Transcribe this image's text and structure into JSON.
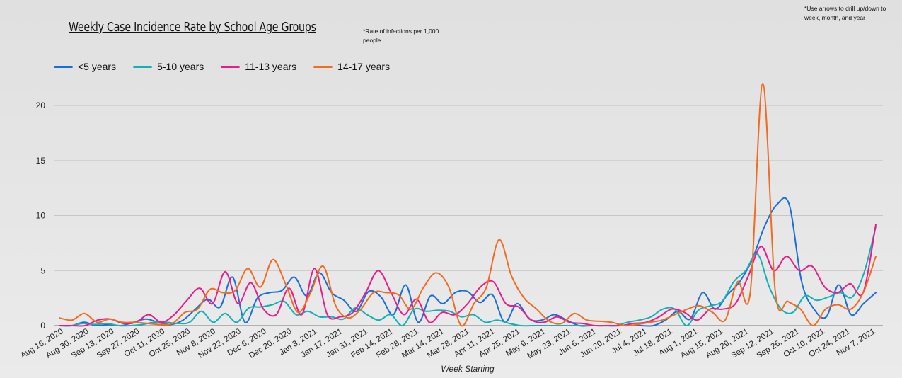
{
  "header": {
    "title": "Weekly Case Incidence Rate by School Age Groups",
    "rate_note": "*Rate of infections per 1,000 people",
    "drill_note": "*Use arrows to drill up/down to week, month, and year"
  },
  "chart_data": {
    "type": "line",
    "title": "Weekly Case Incidence Rate by School Age Groups",
    "xlabel": "Week Starting",
    "ylabel": "",
    "ylim": [
      0,
      22
    ],
    "yticks": [
      0,
      5,
      10,
      15,
      20
    ],
    "grid": true,
    "legend_position": "top-left",
    "x_tick_labels": [
      "Aug 16, 2020",
      "Aug 30, 2020",
      "Sep 13, 2020",
      "Sep 27, 2020",
      "Oct 11, 2020",
      "Oct 25, 2020",
      "Nov 8, 2020",
      "Nov 22, 2020",
      "Dec 6, 2020",
      "Dec 20, 2020",
      "Jan 3, 2021",
      "Jan 17, 2021",
      "Jan 31, 2021",
      "Feb 14, 2021",
      "Feb 28, 2021",
      "Mar 14, 2021",
      "Mar 28, 2021",
      "Apr 11, 2021",
      "Apr 25, 2021",
      "May 9, 2021",
      "May 23, 2021",
      "Jun 6, 2021",
      "Jun 20, 2021",
      "Jul 4, 2021",
      "Jul 18, 2021",
      "Aug 1, 2021",
      "Aug 15, 2021",
      "Aug 29, 2021",
      "Sep 12, 2021",
      "Sep 26, 2021",
      "Oct 10, 2021",
      "Oct 24, 2021",
      "Nov 7, 2021"
    ],
    "series": [
      {
        "name": "<5 years",
        "color": "#1a6fd6",
        "values": [
          0,
          0,
          0.3,
          0,
          0.1,
          0,
          0.3,
          0.6,
          0.3,
          0.1,
          0.5,
          1.5,
          2.4,
          1.7,
          4.4,
          0.3,
          2.5,
          3.0,
          3.2,
          4.4,
          2.7,
          4.8,
          3.0,
          2.3,
          1.3,
          3.1,
          2.6,
          1.0,
          3.7,
          0.3,
          2.7,
          2.0,
          3.0,
          3.1,
          2.1,
          2.8,
          0.3,
          2.0,
          0.6,
          0.5,
          1.0,
          0.5,
          0,
          0,
          0,
          0,
          0,
          0,
          0,
          0.5,
          1.3,
          0.6,
          3.0,
          1.5,
          2.8,
          4.0,
          6.0,
          9.0,
          11.0,
          11.0,
          4.0,
          1.5,
          0.8,
          3.7,
          1.0,
          2.0,
          3.0
        ]
      },
      {
        "name": "5-10 years",
        "color": "#12b0b8",
        "values": [
          0,
          0,
          0.2,
          0.1,
          0.2,
          0,
          0,
          0.1,
          0.3,
          0.3,
          0.2,
          0.3,
          1.3,
          0.3,
          1.1,
          0.3,
          1.6,
          1.7,
          1.9,
          2.2,
          1.0,
          1.3,
          0.8,
          0.8,
          0.6,
          1.6,
          1.0,
          0.5,
          1.0,
          0,
          1.5,
          1.3,
          1.4,
          1.3,
          0.8,
          1.0,
          0.3,
          0.5,
          0.2,
          0,
          0,
          0,
          0,
          0,
          0,
          0,
          0,
          0,
          0.3,
          0.5,
          0.8,
          1.5,
          1.5,
          0,
          1.4,
          1.8,
          2.2,
          4.0,
          5.0,
          6.5,
          3.5,
          1.5,
          1.2,
          2.7,
          2.3,
          2.6,
          3.0,
          2.6,
          4.8,
          9.0
        ]
      },
      {
        "name": "11-13 years",
        "color": "#ea1c8c",
        "values": [
          0,
          0,
          0,
          0.5,
          0.6,
          0.2,
          0.3,
          1.0,
          0.3,
          1.0,
          2.3,
          3.4,
          2.0,
          4.9,
          2.0,
          3.9,
          1.5,
          1.0,
          3.4,
          1.0,
          5.2,
          1.0,
          0.8,
          1.2,
          3.0,
          5.0,
          3.0,
          1.0,
          2.4,
          0.3,
          1.2,
          1.0,
          2.0,
          3.5,
          4.0,
          2.0,
          1.7,
          0.5,
          0.3,
          0.8,
          0.3,
          0.2,
          0,
          0,
          0,
          0.2,
          0.3,
          0.8,
          1.5,
          1.2,
          0.5,
          1.5,
          1.5,
          2.0,
          4.5,
          7.2,
          5.0,
          6.3,
          5.0,
          5.4,
          3.5,
          3.0,
          3.8,
          3.0,
          9.2
        ]
      },
      {
        "name": "14-17 years",
        "color": "#f26b21",
        "values": [
          0.7,
          0.5,
          1.1,
          0.3,
          0.6,
          0.3,
          0.3,
          0.2,
          0.1,
          0.2,
          1.2,
          1.5,
          3.3,
          3.0,
          3.2,
          5.2,
          3.5,
          6.0,
          3.8,
          1.2,
          3.0,
          5.4,
          1.8,
          0.7,
          1.5,
          3.0,
          3.0,
          2.8,
          1.5,
          3.5,
          4.8,
          3.5,
          0,
          2.0,
          3.5,
          7.8,
          4.5,
          2.5,
          1.5,
          0.4,
          0.2,
          1.1,
          0.5,
          0.4,
          0.3,
          0,
          0.1,
          0.3,
          0.5,
          1.0,
          1.5,
          1.8,
          1.2,
          0.5,
          4.0,
          3.0,
          22.0,
          3.0,
          2.2,
          1.5,
          0,
          1.5,
          1.9,
          1.5,
          3.0,
          6.3
        ]
      }
    ]
  }
}
